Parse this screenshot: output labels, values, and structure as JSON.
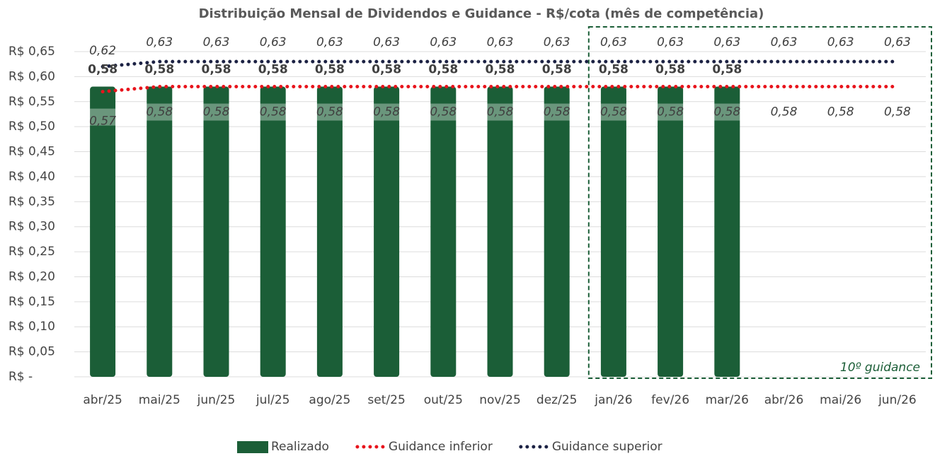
{
  "chart_data": {
    "type": "bar",
    "title": "Distribuição Mensal de Dividendos e Guidance - R$/cota (mês de competência)",
    "categories": [
      "abr/25",
      "mai/25",
      "jun/25",
      "jul/25",
      "ago/25",
      "set/25",
      "out/25",
      "nov/25",
      "dez/25",
      "jan/26",
      "fev/26",
      "mar/26",
      "abr/26",
      "mai/26",
      "jun/26"
    ],
    "series": [
      {
        "name": "Realizado",
        "type": "bar",
        "color": "#1b5e37",
        "values": [
          0.58,
          0.58,
          0.58,
          0.58,
          0.58,
          0.58,
          0.58,
          0.58,
          0.58,
          0.58,
          0.58,
          0.58,
          null,
          null,
          null
        ],
        "value_labels": [
          "0,58",
          "0,58",
          "0,58",
          "0,58",
          "0,58",
          "0,58",
          "0,58",
          "0,58",
          "0,58",
          "0,58",
          "0,58",
          "0,58",
          null,
          null,
          null
        ]
      },
      {
        "name": "Guidance inferior",
        "type": "line",
        "color": "#e8141c",
        "values": [
          0.57,
          0.58,
          0.58,
          0.58,
          0.58,
          0.58,
          0.58,
          0.58,
          0.58,
          0.58,
          0.58,
          0.58,
          0.58,
          0.58,
          0.58
        ],
        "value_labels": [
          "0,57",
          "0,58",
          "0,58",
          "0,58",
          "0,58",
          "0,58",
          "0,58",
          "0,58",
          "0,58",
          "0,58",
          "0,58",
          "0,58",
          "0,58",
          "0,58",
          "0,58"
        ]
      },
      {
        "name": "Guidance superior",
        "type": "line",
        "color": "#1c2244",
        "values": [
          0.62,
          0.63,
          0.63,
          0.63,
          0.63,
          0.63,
          0.63,
          0.63,
          0.63,
          0.63,
          0.63,
          0.63,
          0.63,
          0.63,
          0.63
        ],
        "value_labels": [
          "0,62",
          "0,63",
          "0,63",
          "0,63",
          "0,63",
          "0,63",
          "0,63",
          "0,63",
          "0,63",
          "0,63",
          "0,63",
          "0,63",
          "0,63",
          "0,63",
          "0,63"
        ]
      }
    ],
    "ylim": [
      0,
      0.65
    ],
    "yticks": [
      {
        "value": 0,
        "label": "R$ -"
      },
      {
        "value": 0.05,
        "label": "R$ 0,05"
      },
      {
        "value": 0.1,
        "label": "R$ 0,10"
      },
      {
        "value": 0.15,
        "label": "R$ 0,15"
      },
      {
        "value": 0.2,
        "label": "R$ 0,20"
      },
      {
        "value": 0.25,
        "label": "R$ 0,25"
      },
      {
        "value": 0.3,
        "label": "R$ 0,30"
      },
      {
        "value": 0.35,
        "label": "R$ 0,35"
      },
      {
        "value": 0.4,
        "label": "R$ 0,40"
      },
      {
        "value": 0.45,
        "label": "R$ 0,45"
      },
      {
        "value": 0.5,
        "label": "R$ 0,50"
      },
      {
        "value": 0.55,
        "label": "R$ 0,55"
      },
      {
        "value": 0.6,
        "label": "R$ 0,60"
      },
      {
        "value": 0.65,
        "label": "R$ 0,65"
      }
    ],
    "grid": true,
    "legend": "bottom",
    "annotation": "10º guidance"
  }
}
